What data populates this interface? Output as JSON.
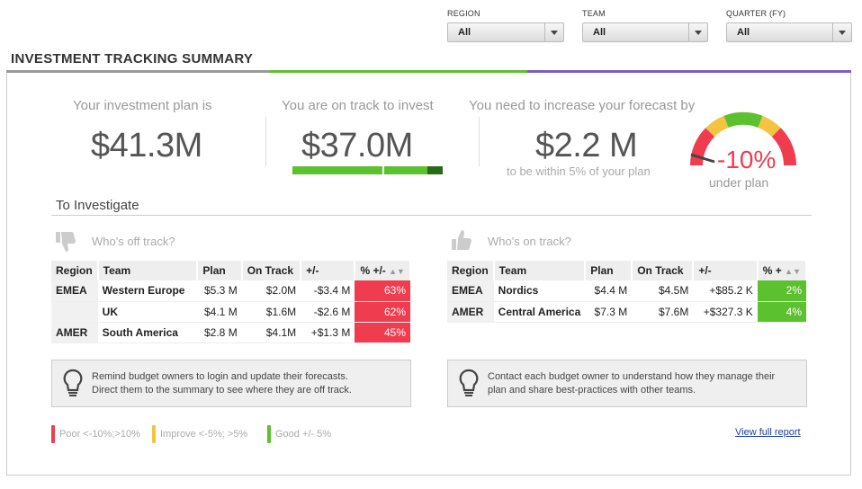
{
  "filters": {
    "region": {
      "label": "REGION",
      "value": "All"
    },
    "team": {
      "label": "TEAM",
      "value": "All"
    },
    "quarter": {
      "label": "QUARTER (FY)",
      "value": "All"
    }
  },
  "title": "INVESTMENT TRACKING SUMMARY",
  "colors": {
    "red": "#f03c4f",
    "green": "#5cc12f",
    "purple": "#7b5fbf",
    "yellow": "#f5c342"
  },
  "kpis": {
    "plan": {
      "label": "Your investment plan is",
      "value": "$41.3M"
    },
    "on_track": {
      "label": "You are on track to invest",
      "value": "$37.0M",
      "progress": 0.9
    },
    "increase": {
      "label": "You need to increase your forecast by",
      "value": "$2.2 M",
      "note": "to be within 5% of your plan"
    }
  },
  "gauge": {
    "value": "-10%",
    "caption": "under plan"
  },
  "investigate": {
    "title": "To Investigate",
    "off_track": {
      "heading": "Who's off track?",
      "columns": [
        "Region",
        "Team",
        "Plan",
        "On Track",
        "+/-",
        "% +/-"
      ],
      "rows": [
        {
          "region": "EMEA",
          "team": "Western Europe",
          "plan": "$5.3 M",
          "on_track": "$2.0M",
          "diff": "-$3.4 M",
          "pct": "63%"
        },
        {
          "region": "",
          "team": "UK",
          "plan": "$4.1 M",
          "on_track": "$1.6M",
          "diff": "-$2.6 M",
          "pct": "62%"
        },
        {
          "region": "AMER",
          "team": "South America",
          "plan": "$2.8 M",
          "on_track": "$4.1M",
          "diff": "+$1.3 M",
          "pct": "45%"
        }
      ],
      "tip": [
        "Remind budget owners to login and update their forecasts.",
        "Direct them to the summary to see where they are off track."
      ]
    },
    "on_track": {
      "heading": "Who's on track?",
      "columns": [
        "Region",
        "Team",
        "Plan",
        "On Track",
        "+/-",
        "% +"
      ],
      "rows": [
        {
          "region": "EMEA",
          "team": "Nordics",
          "plan": "$4.4 M",
          "on_track": "$4.5M",
          "diff": "+$85.2 K",
          "pct": "2%"
        },
        {
          "region": "AMER",
          "team": "Central America",
          "plan": "$7.3 M",
          "on_track": "$7.6M",
          "diff": "+$327.3 K",
          "pct": "4%"
        }
      ],
      "tip": [
        "Contact each budget owner to understand how they manage their",
        "plan and share best-practices with other teams."
      ]
    }
  },
  "legend": [
    {
      "label": "Poor <-10%;>10%",
      "color": "#f03c4f"
    },
    {
      "label": "Improve <-5%; >5%",
      "color": "#f5c342"
    },
    {
      "label": "Good +/- 5%",
      "color": "#5cc12f"
    }
  ],
  "report_link": "View full report"
}
